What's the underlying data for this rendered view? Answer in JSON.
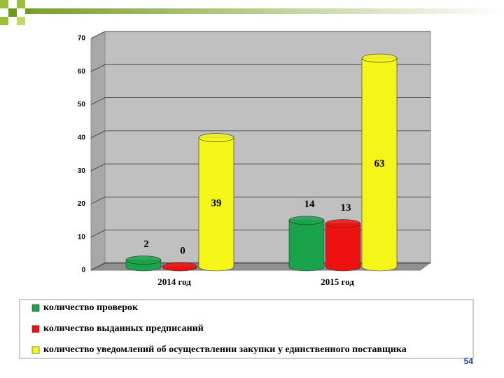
{
  "chart_data": {
    "type": "bar",
    "categories": [
      "2014 год",
      "2015 год"
    ],
    "series": [
      {
        "name": "количество проверок",
        "color": "#1aa34a",
        "values": [
          2,
          14
        ]
      },
      {
        "name": "количество выданных предписаний",
        "color": "#ee1111",
        "values": [
          0,
          13
        ]
      },
      {
        "name": "количество уведомлений об осуществлении закупки у единственного поставщика",
        "color": "#f5f51a",
        "values": [
          39,
          63
        ]
      }
    ],
    "ylim": [
      0,
      70
    ],
    "yticks": [
      0,
      10,
      20,
      30,
      40,
      50,
      60,
      70
    ],
    "grid": true,
    "legend": "bottom"
  },
  "slide_number": "54"
}
